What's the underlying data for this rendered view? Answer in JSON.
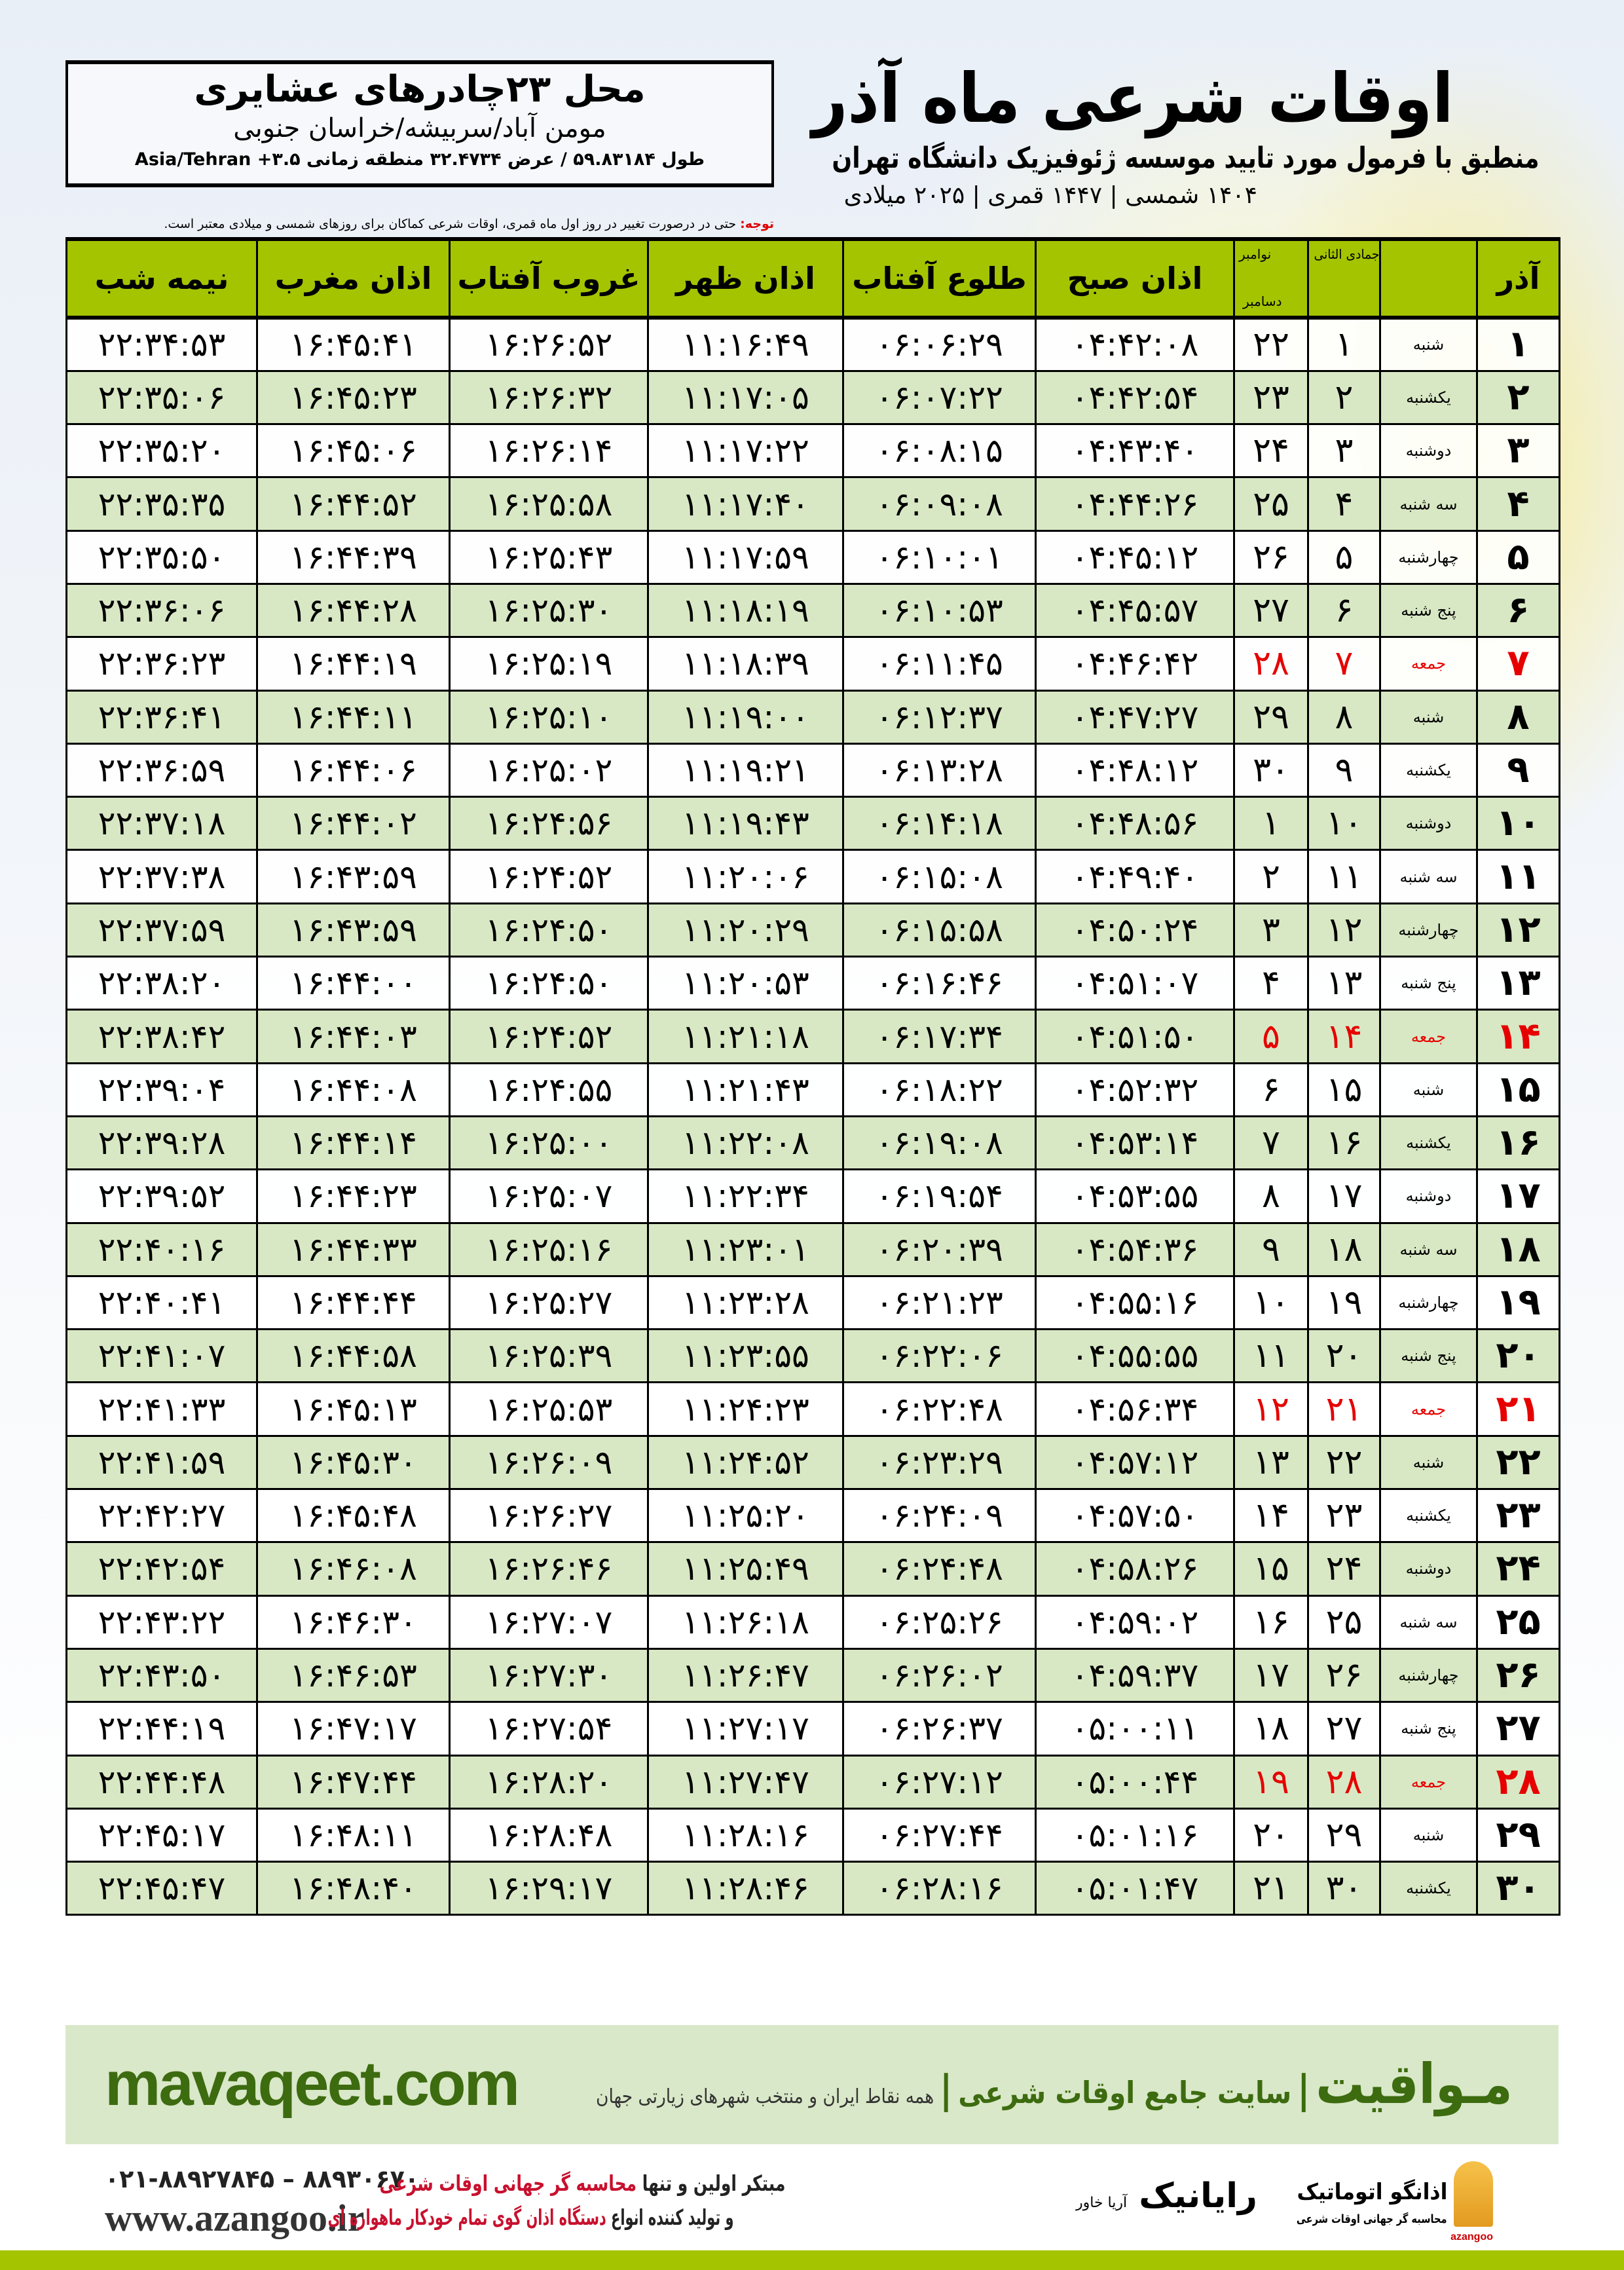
{
  "info": {
    "place": "محل ۲۳چادرهای عشایری",
    "region": "مومن آباد/سربیشه/خراسان جنوبی",
    "coords": "طول ۵۹.۸۳۱۸۴ / عرض ۳۲.۴۷۳۴ منطقه زمانی Asia/Tehran +۳.۵"
  },
  "title": "اوقات شرعی ماه آذر",
  "subtitle": "منطبق با فرمول مورد تایید موسسه ژئوفیزیک دانشگاه تهران",
  "dates": "۱۴۰۴ شمسی | ۱۴۴۷ قمری | ۲۰۲۵ میلادی",
  "note": {
    "label": "توجه:",
    "text": " حتی در درصورت تغییر در روز اول ماه قمری، اوقات شرعی کماکان برای روزهای شمسی و میلادی معتبر است."
  },
  "table": {
    "headers": {
      "day": "آذر",
      "qamari": "جمادی الثانی",
      "miladi_top": "نوامبر",
      "miladi_bottom": "دسامبر",
      "sobh": "اذان صبح",
      "tolu": "طلوع آفتاب",
      "zohr": "اذان ظهر",
      "ghorub": "غروب آفتاب",
      "maghrib": "اذان مغرب",
      "nime": "نیمه شب"
    },
    "holiday_color": "#e60000",
    "rows": [
      [
        "۱",
        "شنبه",
        "۱",
        "۲۲",
        "۰۴:۴۲:۰۸",
        "۰۶:۰۶:۲۹",
        "۱۱:۱۶:۴۹",
        "۱۶:۲۶:۵۲",
        "۱۶:۴۵:۴۱",
        "۲۲:۳۴:۵۳",
        false
      ],
      [
        "۲",
        "یکشنبه",
        "۲",
        "۲۳",
        "۰۴:۴۲:۵۴",
        "۰۶:۰۷:۲۲",
        "۱۱:۱۷:۰۵",
        "۱۶:۲۶:۳۲",
        "۱۶:۴۵:۲۳",
        "۲۲:۳۵:۰۶",
        false
      ],
      [
        "۳",
        "دوشنبه",
        "۳",
        "۲۴",
        "۰۴:۴۳:۴۰",
        "۰۶:۰۸:۱۵",
        "۱۱:۱۷:۲۲",
        "۱۶:۲۶:۱۴",
        "۱۶:۴۵:۰۶",
        "۲۲:۳۵:۲۰",
        false
      ],
      [
        "۴",
        "سه شنبه",
        "۴",
        "۲۵",
        "۰۴:۴۴:۲۶",
        "۰۶:۰۹:۰۸",
        "۱۱:۱۷:۴۰",
        "۱۶:۲۵:۵۸",
        "۱۶:۴۴:۵۲",
        "۲۲:۳۵:۳۵",
        false
      ],
      [
        "۵",
        "چهارشنبه",
        "۵",
        "۲۶",
        "۰۴:۴۵:۱۲",
        "۰۶:۱۰:۰۱",
        "۱۱:۱۷:۵۹",
        "۱۶:۲۵:۴۳",
        "۱۶:۴۴:۳۹",
        "۲۲:۳۵:۵۰",
        false
      ],
      [
        "۶",
        "پنج شنبه",
        "۶",
        "۲۷",
        "۰۴:۴۵:۵۷",
        "۰۶:۱۰:۵۳",
        "۱۱:۱۸:۱۹",
        "۱۶:۲۵:۳۰",
        "۱۶:۴۴:۲۸",
        "۲۲:۳۶:۰۶",
        false
      ],
      [
        "۷",
        "جمعه",
        "۷",
        "۲۸",
        "۰۴:۴۶:۴۲",
        "۰۶:۱۱:۴۵",
        "۱۱:۱۸:۳۹",
        "۱۶:۲۵:۱۹",
        "۱۶:۴۴:۱۹",
        "۲۲:۳۶:۲۳",
        true
      ],
      [
        "۸",
        "شنبه",
        "۸",
        "۲۹",
        "۰۴:۴۷:۲۷",
        "۰۶:۱۲:۳۷",
        "۱۱:۱۹:۰۰",
        "۱۶:۲۵:۱۰",
        "۱۶:۴۴:۱۱",
        "۲۲:۳۶:۴۱",
        false
      ],
      [
        "۹",
        "یکشنبه",
        "۹",
        "۳۰",
        "۰۴:۴۸:۱۲",
        "۰۶:۱۳:۲۸",
        "۱۱:۱۹:۲۱",
        "۱۶:۲۵:۰۲",
        "۱۶:۴۴:۰۶",
        "۲۲:۳۶:۵۹",
        false
      ],
      [
        "۱۰",
        "دوشنبه",
        "۱۰",
        "۱",
        "۰۴:۴۸:۵۶",
        "۰۶:۱۴:۱۸",
        "۱۱:۱۹:۴۳",
        "۱۶:۲۴:۵۶",
        "۱۶:۴۴:۰۲",
        "۲۲:۳۷:۱۸",
        false
      ],
      [
        "۱۱",
        "سه شنبه",
        "۱۱",
        "۲",
        "۰۴:۴۹:۴۰",
        "۰۶:۱۵:۰۸",
        "۱۱:۲۰:۰۶",
        "۱۶:۲۴:۵۲",
        "۱۶:۴۳:۵۹",
        "۲۲:۳۷:۳۸",
        false
      ],
      [
        "۱۲",
        "چهارشنبه",
        "۱۲",
        "۳",
        "۰۴:۵۰:۲۴",
        "۰۶:۱۵:۵۸",
        "۱۱:۲۰:۲۹",
        "۱۶:۲۴:۵۰",
        "۱۶:۴۳:۵۹",
        "۲۲:۳۷:۵۹",
        false
      ],
      [
        "۱۳",
        "پنج شنبه",
        "۱۳",
        "۴",
        "۰۴:۵۱:۰۷",
        "۰۶:۱۶:۴۶",
        "۱۱:۲۰:۵۳",
        "۱۶:۲۴:۵۰",
        "۱۶:۴۴:۰۰",
        "۲۲:۳۸:۲۰",
        false
      ],
      [
        "۱۴",
        "جمعه",
        "۱۴",
        "۵",
        "۰۴:۵۱:۵۰",
        "۰۶:۱۷:۳۴",
        "۱۱:۲۱:۱۸",
        "۱۶:۲۴:۵۲",
        "۱۶:۴۴:۰۳",
        "۲۲:۳۸:۴۲",
        true
      ],
      [
        "۱۵",
        "شنبه",
        "۱۵",
        "۶",
        "۰۴:۵۲:۳۲",
        "۰۶:۱۸:۲۲",
        "۱۱:۲۱:۴۳",
        "۱۶:۲۴:۵۵",
        "۱۶:۴۴:۰۸",
        "۲۲:۳۹:۰۴",
        false
      ],
      [
        "۱۶",
        "یکشنبه",
        "۱۶",
        "۷",
        "۰۴:۵۳:۱۴",
        "۰۶:۱۹:۰۸",
        "۱۱:۲۲:۰۸",
        "۱۶:۲۵:۰۰",
        "۱۶:۴۴:۱۴",
        "۲۲:۳۹:۲۸",
        false
      ],
      [
        "۱۷",
        "دوشنبه",
        "۱۷",
        "۸",
        "۰۴:۵۳:۵۵",
        "۰۶:۱۹:۵۴",
        "۱۱:۲۲:۳۴",
        "۱۶:۲۵:۰۷",
        "۱۶:۴۴:۲۳",
        "۲۲:۳۹:۵۲",
        false
      ],
      [
        "۱۸",
        "سه شنبه",
        "۱۸",
        "۹",
        "۰۴:۵۴:۳۶",
        "۰۶:۲۰:۳۹",
        "۱۱:۲۳:۰۱",
        "۱۶:۲۵:۱۶",
        "۱۶:۴۴:۳۳",
        "۲۲:۴۰:۱۶",
        false
      ],
      [
        "۱۹",
        "چهارشنبه",
        "۱۹",
        "۱۰",
        "۰۴:۵۵:۱۶",
        "۰۶:۲۱:۲۳",
        "۱۱:۲۳:۲۸",
        "۱۶:۲۵:۲۷",
        "۱۶:۴۴:۴۴",
        "۲۲:۴۰:۴۱",
        false
      ],
      [
        "۲۰",
        "پنج شنبه",
        "۲۰",
        "۱۱",
        "۰۴:۵۵:۵۵",
        "۰۶:۲۲:۰۶",
        "۱۱:۲۳:۵۵",
        "۱۶:۲۵:۳۹",
        "۱۶:۴۴:۵۸",
        "۲۲:۴۱:۰۷",
        false
      ],
      [
        "۲۱",
        "جمعه",
        "۲۱",
        "۱۲",
        "۰۴:۵۶:۳۴",
        "۰۶:۲۲:۴۸",
        "۱۱:۲۴:۲۳",
        "۱۶:۲۵:۵۳",
        "۱۶:۴۵:۱۳",
        "۲۲:۴۱:۳۳",
        true
      ],
      [
        "۲۲",
        "شنبه",
        "۲۲",
        "۱۳",
        "۰۴:۵۷:۱۲",
        "۰۶:۲۳:۲۹",
        "۱۱:۲۴:۵۲",
        "۱۶:۲۶:۰۹",
        "۱۶:۴۵:۳۰",
        "۲۲:۴۱:۵۹",
        false
      ],
      [
        "۲۳",
        "یکشنبه",
        "۲۳",
        "۱۴",
        "۰۴:۵۷:۵۰",
        "۰۶:۲۴:۰۹",
        "۱۱:۲۵:۲۰",
        "۱۶:۲۶:۲۷",
        "۱۶:۴۵:۴۸",
        "۲۲:۴۲:۲۷",
        false
      ],
      [
        "۲۴",
        "دوشنبه",
        "۲۴",
        "۱۵",
        "۰۴:۵۸:۲۶",
        "۰۶:۲۴:۴۸",
        "۱۱:۲۵:۴۹",
        "۱۶:۲۶:۴۶",
        "۱۶:۴۶:۰۸",
        "۲۲:۴۲:۵۴",
        false
      ],
      [
        "۲۵",
        "سه شنبه",
        "۲۵",
        "۱۶",
        "۰۴:۵۹:۰۲",
        "۰۶:۲۵:۲۶",
        "۱۱:۲۶:۱۸",
        "۱۶:۲۷:۰۷",
        "۱۶:۴۶:۳۰",
        "۲۲:۴۳:۲۲",
        false
      ],
      [
        "۲۶",
        "چهارشنبه",
        "۲۶",
        "۱۷",
        "۰۴:۵۹:۳۷",
        "۰۶:۲۶:۰۲",
        "۱۱:۲۶:۴۷",
        "۱۶:۲۷:۳۰",
        "۱۶:۴۶:۵۳",
        "۲۲:۴۳:۵۰",
        false
      ],
      [
        "۲۷",
        "پنج شنبه",
        "۲۷",
        "۱۸",
        "۰۵:۰۰:۱۱",
        "۰۶:۲۶:۳۷",
        "۱۱:۲۷:۱۷",
        "۱۶:۲۷:۵۴",
        "۱۶:۴۷:۱۷",
        "۲۲:۴۴:۱۹",
        false
      ],
      [
        "۲۸",
        "جمعه",
        "۲۸",
        "۱۹",
        "۰۵:۰۰:۴۴",
        "۰۶:۲۷:۱۲",
        "۱۱:۲۷:۴۷",
        "۱۶:۲۸:۲۰",
        "۱۶:۴۷:۴۴",
        "۲۲:۴۴:۴۸",
        true
      ],
      [
        "۲۹",
        "شنبه",
        "۲۹",
        "۲۰",
        "۰۵:۰۱:۱۶",
        "۰۶:۲۷:۴۴",
        "۱۱:۲۸:۱۶",
        "۱۶:۲۸:۴۸",
        "۱۶:۴۸:۱۱",
        "۲۲:۴۵:۱۷",
        false
      ],
      [
        "۳۰",
        "یکشنبه",
        "۳۰",
        "۲۱",
        "۰۵:۰۱:۴۷",
        "۰۶:۲۸:۱۶",
        "۱۱:۲۸:۴۶",
        "۱۶:۲۹:۱۷",
        "۱۶:۴۸:۴۰",
        "۲۲:۴۵:۴۷",
        false
      ]
    ]
  },
  "banner": {
    "brand": "مـواقیت",
    "sep": "|",
    "tagline": "سایت جامع اوقات شرعی",
    "sep2": "|",
    "subtag": "همه نقاط ایران و منتخب شهرهای زیارتی جهان",
    "site": "mavaqeet.com",
    "color": "#3d6b10"
  },
  "footer": {
    "phones": "۰۲۱-۸۸۹۲۷۸۴۵ – ۸۸۹۳۰۶۷۰",
    "www": "www.azangoo.ir",
    "promo_1a": "مبتکر اولین و تنها ",
    "promo_1b": "محاسبه گر جهانی اوقات شرعی",
    "promo_2a": "و تولید کننده انواع ",
    "promo_2b": "دستگاه اذان گوی تمام خودکار ماهواره ای",
    "logo_azangoo": "اذانگو اتوماتیک",
    "logo_azangoo_sub": "محاسبه گر جهانی اوقات شرعی",
    "logo_azangoo_en": "azangoo",
    "logo_rayanik": "رایانیک",
    "logo_rayanik_sub": "آریا خاور",
    "accent": "#a4c400"
  }
}
